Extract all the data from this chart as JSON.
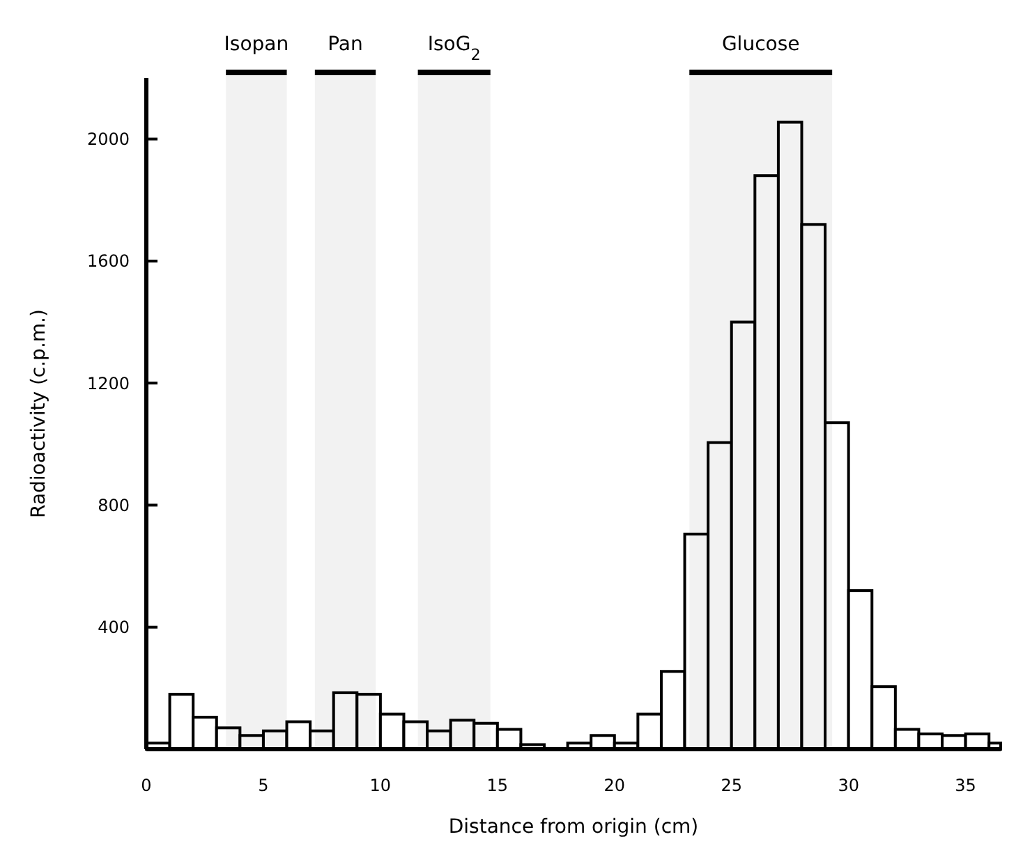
{
  "chart_data": {
    "type": "histogram",
    "xlabel": "Distance from origin (cm)",
    "ylabel": "Radioactivity (c.p.m.)",
    "bins": [
      0,
      1,
      2,
      3,
      4,
      5,
      6,
      7,
      8,
      9,
      10,
      11,
      12,
      13,
      14,
      15,
      16,
      17,
      18,
      19,
      20,
      21,
      22,
      23,
      24,
      25,
      26,
      27,
      28,
      29,
      30,
      31,
      32,
      33,
      34,
      35,
      36,
      36.5
    ],
    "values": [
      20,
      180,
      105,
      70,
      45,
      60,
      90,
      60,
      185,
      180,
      115,
      90,
      60,
      95,
      85,
      65,
      15,
      0,
      20,
      45,
      20,
      115,
      255,
      705,
      1005,
      1400,
      1880,
      2055,
      1720,
      1070,
      520,
      205,
      65,
      50,
      45,
      50,
      20
    ],
    "color": "#ffffff",
    "xlim": [
      0,
      36.5
    ],
    "xticks": [
      0,
      5,
      10,
      15,
      20,
      25,
      30,
      35
    ],
    "ylim": [
      0,
      2200
    ],
    "yticks": [
      400,
      800,
      1200,
      1600,
      2000
    ],
    "bands": [
      {
        "axis": "x",
        "from": 3.4,
        "to": 6,
        "label": "Isopan",
        "color": "#000000"
      },
      {
        "axis": "x",
        "from": 7.2,
        "to": 9.8,
        "label": "Pan",
        "color": "#000000"
      },
      {
        "axis": "x",
        "from": 11.6,
        "to": 14.7,
        "label": "IsoG$_{2}$",
        "color": "#000000"
      },
      {
        "axis": "x",
        "from": 23.2,
        "to": 29.3,
        "label": "Glucose",
        "color": "#000000"
      }
    ],
    "grid": false
  }
}
